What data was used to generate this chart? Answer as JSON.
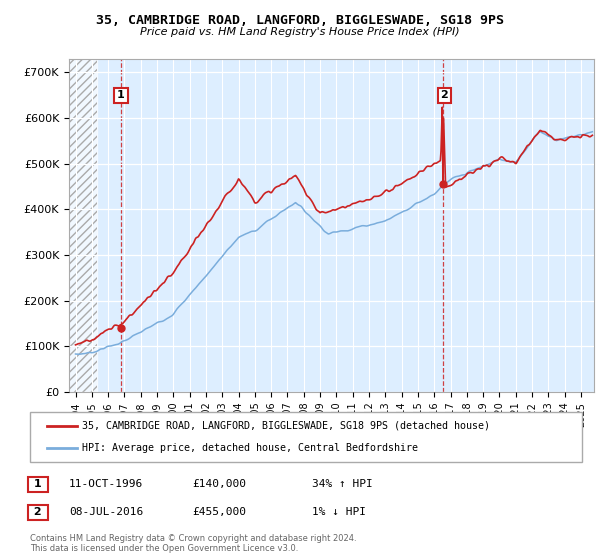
{
  "title_line1": "35, CAMBRIDGE ROAD, LANGFORD, BIGGLESWADE, SG18 9PS",
  "title_line2": "Price paid vs. HM Land Registry's House Price Index (HPI)",
  "ylim": [
    0,
    730000
  ],
  "yticks": [
    0,
    100000,
    200000,
    300000,
    400000,
    500000,
    600000,
    700000
  ],
  "ytick_labels": [
    "£0",
    "£100K",
    "£200K",
    "£300K",
    "£400K",
    "£500K",
    "£600K",
    "£700K"
  ],
  "xlim_start": 1993.6,
  "xlim_end": 2025.8,
  "xticks": [
    1994,
    1995,
    1996,
    1997,
    1998,
    1999,
    2000,
    2001,
    2002,
    2003,
    2004,
    2005,
    2006,
    2007,
    2008,
    2009,
    2010,
    2011,
    2012,
    2013,
    2014,
    2015,
    2016,
    2017,
    2018,
    2019,
    2020,
    2021,
    2022,
    2023,
    2024,
    2025
  ],
  "hpi_color": "#7aaddc",
  "price_color": "#cc2222",
  "dashed_color": "#cc2222",
  "grid_color": "#c8d8e8",
  "bg_color": "#ddeeff",
  "sale1_date": 1996.78,
  "sale1_price": 140000,
  "sale1_label": "1",
  "sale1_hpi_note": "34% ↑ HPI",
  "sale1_date_str": "11-OCT-1996",
  "sale2_date": 2016.52,
  "sale2_price": 455000,
  "sale2_label": "2",
  "sale2_hpi_note": "1% ↓ HPI",
  "sale2_date_str": "08-JUL-2016",
  "legend_line1": "35, CAMBRIDGE ROAD, LANGFORD, BIGGLESWADE, SG18 9PS (detached house)",
  "legend_line2": "HPI: Average price, detached house, Central Bedfordshire",
  "footer1": "Contains HM Land Registry data © Crown copyright and database right 2024.",
  "footer2": "This data is licensed under the Open Government Licence v3.0.",
  "box_color": "#cc2222"
}
